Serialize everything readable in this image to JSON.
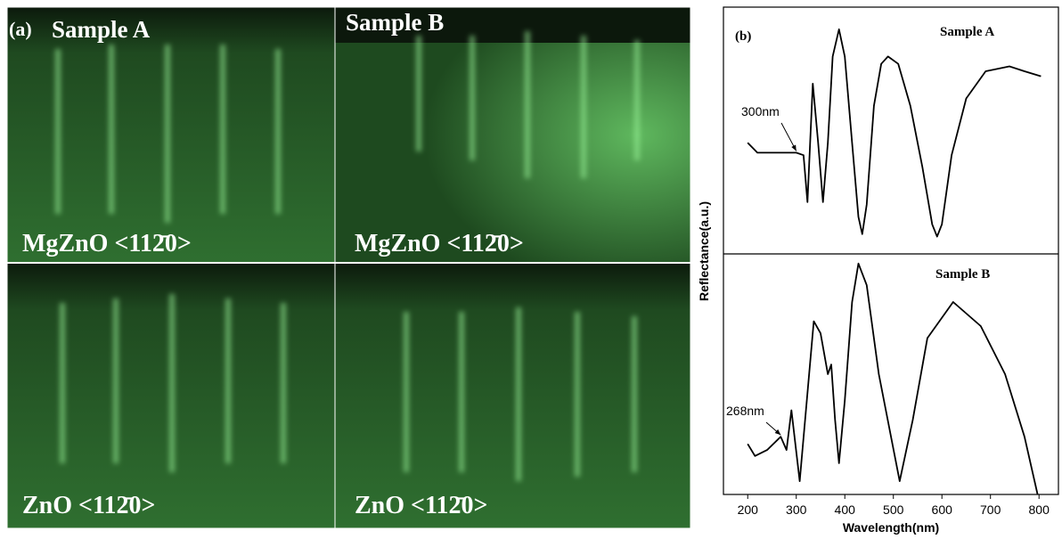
{
  "panel_a": {
    "label": "(a)",
    "images": [
      {
        "title": "Sample A",
        "caption": "MgZnO <112̄0>"
      },
      {
        "title": "Sample B",
        "caption": "MgZnO <112̄0>"
      },
      {
        "caption": "ZnO <112̄0>"
      },
      {
        "caption": "ZnO <112̄0>"
      }
    ]
  },
  "panel_b": {
    "label": "(b)",
    "ylabel": "Reflectance(a.u.)",
    "xlabel": "Wavelength(nm)"
  },
  "chart_data": [
    {
      "type": "line",
      "title": "Sample A",
      "color": "#000000",
      "x": [
        200,
        220,
        250,
        280,
        300,
        315,
        323,
        334,
        345,
        355,
        365,
        375,
        388,
        400,
        415,
        428,
        436,
        445,
        460,
        475,
        489,
        510,
        535,
        560,
        580,
        590,
        600,
        620,
        650,
        690,
        739,
        770,
        804
      ],
      "values": [
        0.45,
        0.41,
        0.41,
        0.41,
        0.41,
        0.4,
        0.21,
        0.69,
        0.45,
        0.21,
        0.45,
        0.8,
        0.91,
        0.8,
        0.45,
        0.15,
        0.08,
        0.2,
        0.6,
        0.77,
        0.8,
        0.77,
        0.6,
        0.35,
        0.12,
        0.07,
        0.12,
        0.4,
        0.63,
        0.74,
        0.76,
        0.74,
        0.72
      ],
      "xlim": [
        150,
        840
      ],
      "ylim": [
        0,
        1
      ],
      "annotation": {
        "text": "300nm",
        "x": 300,
        "y": 0.41
      }
    },
    {
      "type": "line",
      "title": "Sample B",
      "color": "#000000",
      "x": [
        200,
        215,
        240,
        268,
        280,
        290,
        307,
        336,
        350,
        365,
        372,
        380,
        388,
        400,
        415,
        428,
        445,
        470,
        513,
        540,
        570,
        623,
        680,
        730,
        770,
        797
      ],
      "values": [
        0.21,
        0.16,
        0.185,
        0.24,
        0.185,
        0.35,
        0.055,
        0.72,
        0.67,
        0.5,
        0.54,
        0.31,
        0.13,
        0.39,
        0.8,
        0.96,
        0.87,
        0.5,
        0.055,
        0.31,
        0.65,
        0.8,
        0.7,
        0.5,
        0.24,
        0.0
      ],
      "xlim": [
        150,
        840
      ],
      "ylim": [
        0,
        1
      ],
      "xticks": [
        200,
        300,
        400,
        500,
        600,
        700,
        800
      ],
      "annotation": {
        "text": "268nm",
        "x": 268,
        "y": 0.24
      }
    }
  ]
}
